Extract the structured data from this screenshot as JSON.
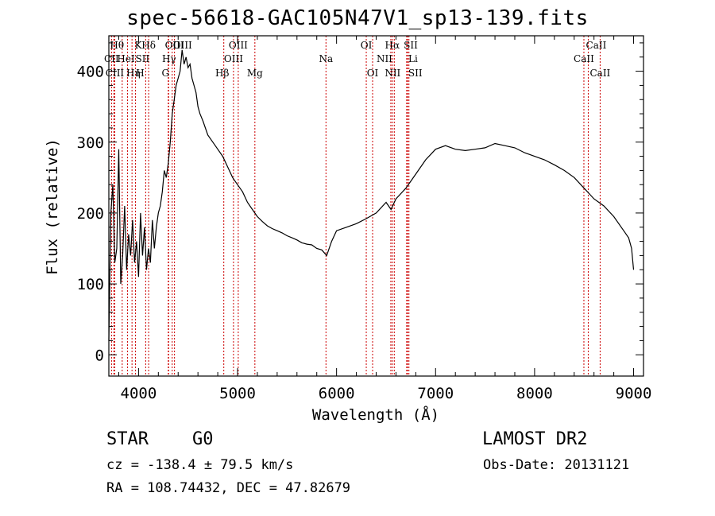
{
  "title": "spec-56618-GAC105N47V1_sp13-139.fits",
  "info": {
    "class_label": "STAR",
    "subclass_label": "G0",
    "survey": "LAMOST DR2",
    "redshift": "cz = -138.4 ± 79.5 km/s",
    "obs_date": "Obs-Date: 20131121",
    "coords": "RA = 108.74432, DEC =  47.82679"
  },
  "chart_data": {
    "type": "line",
    "title": "spec-56618-GAC105N47V1_sp13-139.fits",
    "xlabel": "Wavelength (Å)",
    "ylabel": "Flux (relative)",
    "xlim": [
      3700,
      9100
    ],
    "ylim": [
      -30,
      450
    ],
    "xticks": [
      4000,
      5000,
      6000,
      7000,
      8000,
      9000
    ],
    "yticks": [
      0,
      100,
      200,
      300,
      400
    ],
    "line_color": "#000000",
    "marker_color": "#cc0000",
    "series": [
      {
        "x": [
          3700,
          3720,
          3740,
          3760,
          3780,
          3800,
          3820,
          3840,
          3860,
          3880,
          3900,
          3920,
          3940,
          3960,
          3980,
          4000,
          4020,
          4040,
          4060,
          4080,
          4100,
          4120,
          4140,
          4160,
          4180,
          4200,
          4220,
          4240,
          4260,
          4280,
          4300,
          4320,
          4340,
          4360,
          4380,
          4400,
          4420,
          4440,
          4460,
          4480,
          4500,
          4520,
          4540,
          4560,
          4580,
          4600,
          4620,
          4650,
          4700,
          4750,
          4800,
          4850,
          4900,
          4950,
          5000,
          5050,
          5100,
          5150,
          5200,
          5250,
          5300,
          5350,
          5400,
          5450,
          5500,
          5550,
          5600,
          5650,
          5700,
          5750,
          5800,
          5850,
          5900,
          5950,
          6000,
          6100,
          6200,
          6300,
          6400,
          6500,
          6550,
          6600,
          6700,
          6800,
          6900,
          7000,
          7100,
          7200,
          7300,
          7400,
          7500,
          7600,
          7700,
          7800,
          7900,
          8000,
          8100,
          8200,
          8300,
          8400,
          8500,
          8600,
          8700,
          8800,
          8900,
          8950,
          8980,
          9000
        ],
        "y": [
          20,
          200,
          240,
          130,
          150,
          290,
          100,
          140,
          210,
          120,
          170,
          140,
          190,
          130,
          160,
          110,
          200,
          140,
          180,
          120,
          150,
          130,
          190,
          150,
          180,
          200,
          210,
          230,
          260,
          250,
          270,
          300,
          340,
          360,
          380,
          390,
          400,
          430,
          410,
          420,
          405,
          410,
          390,
          380,
          370,
          350,
          340,
          330,
          310,
          300,
          290,
          280,
          265,
          250,
          240,
          230,
          215,
          205,
          195,
          188,
          182,
          178,
          175,
          172,
          168,
          165,
          162,
          158,
          156,
          155,
          150,
          148,
          140,
          160,
          175,
          180,
          185,
          192,
          200,
          215,
          205,
          220,
          235,
          255,
          275,
          290,
          295,
          290,
          288,
          290,
          292,
          298,
          295,
          292,
          285,
          280,
          275,
          268,
          260,
          250,
          235,
          220,
          210,
          195,
          175,
          165,
          150,
          120
        ]
      }
    ],
    "line_markers": [
      {
        "name": "CII",
        "x": 3727,
        "row": 1,
        "dx": 0
      },
      {
        "name": "Hθ",
        "x": 3750,
        "row": 0,
        "dx": 4
      },
      {
        "name": "CIII",
        "x": 3760,
        "row": 2,
        "dx": 0
      },
      {
        "name": "Hη",
        "x": 3835,
        "row": 2,
        "dx": 14
      },
      {
        "name": "HeI",
        "x": 3889,
        "row": 1,
        "dx": -2
      },
      {
        "name": "K",
        "x": 3934,
        "row": 0,
        "dx": 8
      },
      {
        "name": "H",
        "x": 3969,
        "row": 2,
        "dx": 6
      },
      {
        "name": "SII",
        "x": 4072,
        "row": 1,
        "dx": -4
      },
      {
        "name": "Hδ",
        "x": 4102,
        "row": 0,
        "dx": 0
      },
      {
        "name": "OIII",
        "x": 4300,
        "row": 0,
        "dx": 18
      },
      {
        "name": "Hγ",
        "x": 4340,
        "row": 1,
        "dx": -4
      },
      {
        "name": "G",
        "x": 4304,
        "row": 2,
        "dx": -4
      },
      {
        "name": "OIII",
        "x": 4363,
        "row": -1,
        "dx": 0
      },
      {
        "name": "Hβ",
        "x": 4861,
        "row": 2,
        "dx": -2
      },
      {
        "name": "OIII",
        "x": 4959,
        "row": 1,
        "dx": 0
      },
      {
        "name": "OIII",
        "x": 5007,
        "row": 0,
        "dx": 0
      },
      {
        "name": "Mg",
        "x": 5175,
        "row": 2,
        "dx": 0
      },
      {
        "name": "Na",
        "x": 5893,
        "row": 1,
        "dx": 0
      },
      {
        "name": "OI",
        "x": 6300,
        "row": 0,
        "dx": 0
      },
      {
        "name": "OI",
        "x": 6364,
        "row": 2,
        "dx": 0
      },
      {
        "name": "NII",
        "x": 6548,
        "row": 1,
        "dx": -8
      },
      {
        "name": "Hα",
        "x": 6563,
        "row": 0,
        "dx": 0
      },
      {
        "name": "NII",
        "x": 6583,
        "row": 2,
        "dx": -2
      },
      {
        "name": "SII",
        "x": 6717,
        "row": 0,
        "dx": 4
      },
      {
        "name": "Li",
        "x": 6708,
        "row": 1,
        "dx": 8
      },
      {
        "name": "SII",
        "x": 6731,
        "row": 2,
        "dx": 8
      },
      {
        "name": "CaII",
        "x": 8498,
        "row": 1,
        "dx": 0
      },
      {
        "name": "CaII",
        "x": 8542,
        "row": 0,
        "dx": 10
      },
      {
        "name": "CaII",
        "x": 8662,
        "row": 2,
        "dx": 0
      }
    ]
  }
}
